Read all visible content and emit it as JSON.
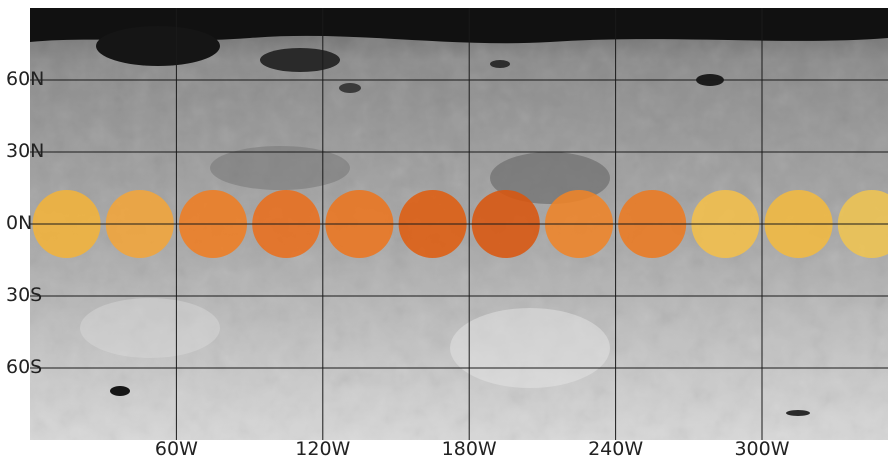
{
  "map": {
    "projection": "equirectangular",
    "lat_labels": [
      {
        "text": "60N",
        "lat": 60
      },
      {
        "text": "30N",
        "lat": 30
      },
      {
        "text": "0N",
        "lat": 0
      },
      {
        "text": "30S",
        "lat": -30
      },
      {
        "text": "60S",
        "lat": -60
      }
    ],
    "lon_labels": [
      {
        "text": "60W",
        "lon": 60
      },
      {
        "text": "120W",
        "lon": 120
      },
      {
        "text": "180W",
        "lon": 180
      },
      {
        "text": "240W",
        "lon": 240
      },
      {
        "text": "300W",
        "lon": 300
      }
    ],
    "grid_color": "#1a1a1a",
    "markers": [
      {
        "lon": 15,
        "lat": 0,
        "color": "#f2b33a"
      },
      {
        "lon": 45,
        "lat": 0,
        "color": "#f3a53a"
      },
      {
        "lon": 75,
        "lat": 0,
        "color": "#ef7d22"
      },
      {
        "lon": 105,
        "lat": 0,
        "color": "#e96e1c"
      },
      {
        "lon": 135,
        "lat": 0,
        "color": "#ec751f"
      },
      {
        "lon": 165,
        "lat": 0,
        "color": "#df5d10"
      },
      {
        "lon": 195,
        "lat": 0,
        "color": "#d9560f"
      },
      {
        "lon": 225,
        "lat": 0,
        "color": "#ef8428"
      },
      {
        "lon": 255,
        "lat": 0,
        "color": "#ec7a21"
      },
      {
        "lon": 285,
        "lat": 0,
        "color": "#f4bf4a"
      },
      {
        "lon": 315,
        "lat": 0,
        "color": "#f2ba40"
      },
      {
        "lon": 345,
        "lat": 0,
        "color": "#efc451"
      }
    ]
  }
}
